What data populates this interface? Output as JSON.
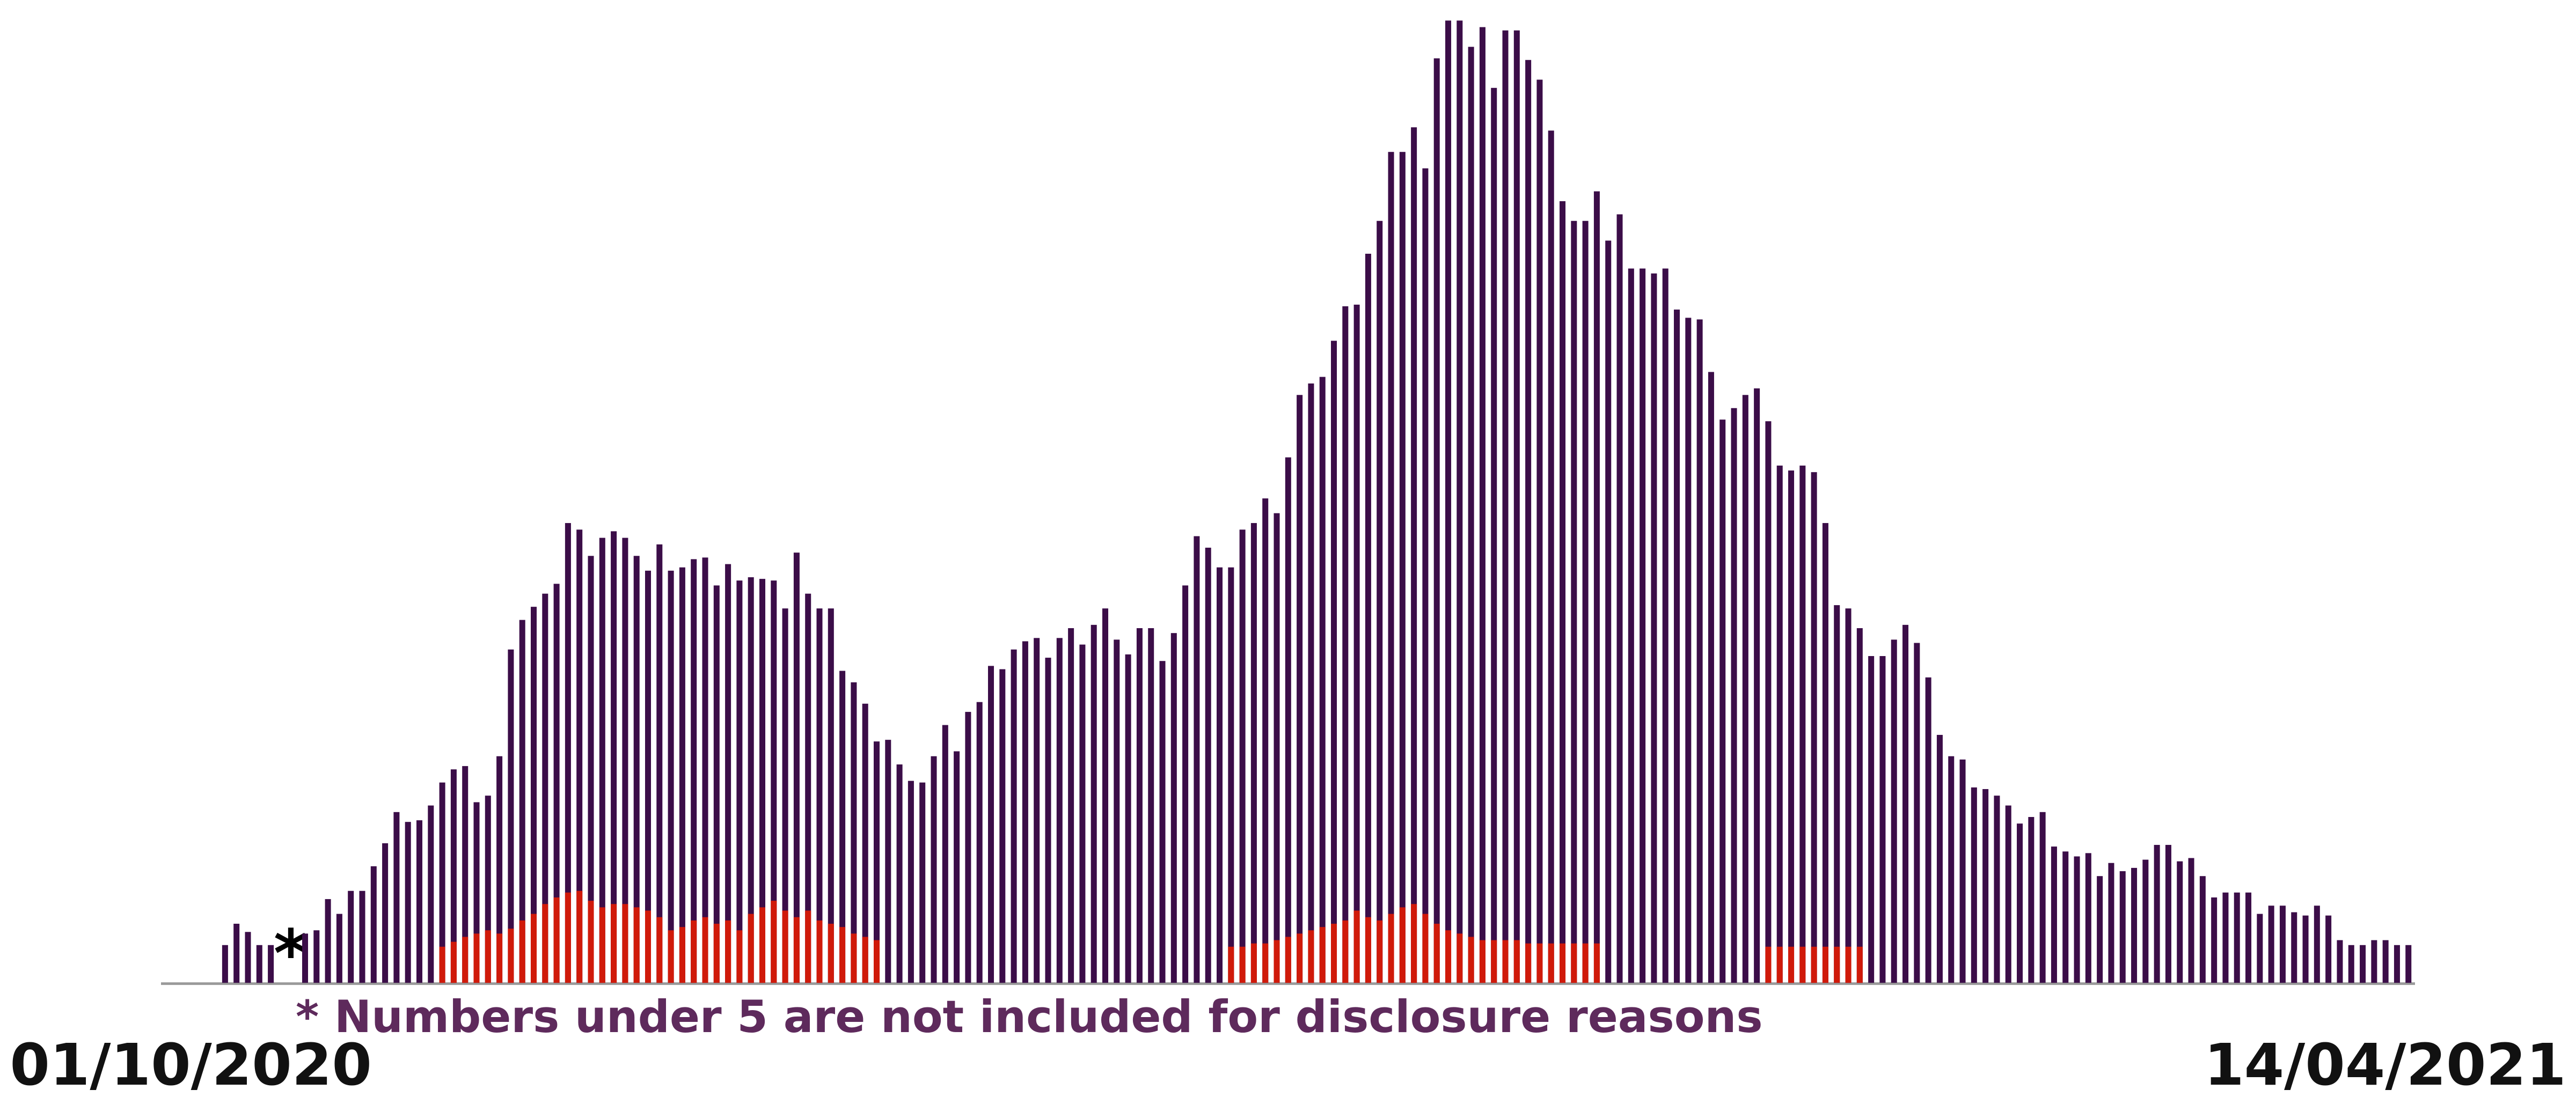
{
  "chart_data": {
    "type": "bar",
    "categories": [
      "01/10/2020",
      null,
      null,
      null,
      null,
      null,
      null,
      null,
      null,
      null,
      null,
      null,
      null,
      null,
      null,
      null,
      null,
      null,
      null,
      null,
      null,
      null,
      null,
      null,
      null,
      null,
      null,
      null,
      null,
      null,
      null,
      null,
      null,
      null,
      null,
      null,
      null,
      null,
      null,
      null,
      null,
      null,
      null,
      null,
      null,
      null,
      null,
      null,
      null,
      null,
      null,
      null,
      null,
      null,
      null,
      null,
      null,
      null,
      null,
      null,
      null,
      null,
      null,
      null,
      null,
      null,
      null,
      null,
      null,
      null,
      null,
      null,
      null,
      null,
      null,
      null,
      null,
      null,
      null,
      null,
      null,
      null,
      null,
      null,
      null,
      null,
      null,
      null,
      null,
      null,
      null,
      null,
      null,
      null,
      null,
      null,
      null,
      null,
      null,
      null,
      null,
      null,
      null,
      null,
      null,
      null,
      null,
      null,
      null,
      null,
      null,
      null,
      null,
      null,
      null,
      null,
      null,
      null,
      null,
      null,
      null,
      null,
      null,
      null,
      null,
      null,
      null,
      null,
      null,
      null,
      null,
      null,
      null,
      null,
      null,
      null,
      null,
      null,
      null,
      null,
      null,
      null,
      null,
      null,
      null,
      null,
      null,
      null,
      null,
      null,
      null,
      null,
      null,
      null,
      null,
      null,
      null,
      null,
      null,
      null,
      null,
      null,
      null,
      null,
      null,
      null,
      null,
      null,
      null,
      null,
      null,
      null,
      null,
      null,
      null,
      null,
      null,
      null,
      null,
      null,
      null,
      null,
      null,
      null,
      null,
      null,
      null,
      null,
      null,
      null,
      null,
      "14/04/2021"
    ],
    "series": [
      {
        "color": "#3b0d48",
        "values": [
          23,
          36,
          31,
          23,
          23,
          null,
          null,
          30,
          32,
          51,
          42,
          56,
          56,
          71,
          85,
          104,
          98,
          99,
          108,
          122,
          130,
          132,
          110,
          114,
          138,
          203,
          221,
          229,
          237,
          243,
          280,
          276,
          260,
          271,
          275,
          271,
          260,
          251,
          267,
          251,
          253,
          258,
          259,
          242,
          255,
          245,
          247,
          246,
          245,
          228,
          262,
          237,
          228,
          228,
          190,
          183,
          170,
          147,
          148,
          133,
          123,
          122,
          138,
          157,
          141,
          165,
          171,
          193,
          191,
          203,
          208,
          210,
          198,
          210,
          216,
          206,
          218,
          228,
          209,
          200,
          216,
          216,
          196,
          213,
          242,
          272,
          265,
          253,
          253,
          276,
          280,
          295,
          286,
          320,
          358,
          365,
          369,
          391,
          412,
          413,
          444,
          464,
          506,
          506,
          521,
          496,
          563,
          586,
          586,
          570,
          582,
          545,
          580,
          580,
          562,
          550,
          519,
          476,
          464,
          464,
          482,
          452,
          468,
          435,
          435,
          432,
          435,
          410,
          405,
          404,
          372,
          343,
          350,
          358,
          362,
          342,
          315,
          312,
          315,
          311,
          280,
          230,
          228,
          216,
          199,
          199,
          209,
          218,
          207,
          186,
          151,
          138,
          136,
          119,
          118,
          114,
          108,
          97,
          101,
          104,
          83,
          80,
          77,
          79,
          65,
          73,
          68,
          70,
          75,
          84,
          84,
          74,
          76,
          65,
          52,
          55,
          55,
          55,
          42,
          47,
          47,
          43,
          41,
          47,
          41,
          26,
          23,
          23,
          26,
          26,
          23,
          23
        ]
      },
      {
        "color": "#d01a0a",
        "values": [
          null,
          null,
          null,
          null,
          null,
          null,
          null,
          null,
          null,
          null,
          null,
          null,
          null,
          null,
          null,
          null,
          null,
          null,
          null,
          22,
          25,
          28,
          30,
          32,
          30,
          33,
          38,
          42,
          48,
          52,
          55,
          56,
          50,
          46,
          48,
          48,
          46,
          44,
          40,
          32,
          34,
          38,
          40,
          36,
          38,
          32,
          42,
          46,
          50,
          44,
          40,
          44,
          38,
          36,
          34,
          30,
          28,
          26,
          null,
          null,
          null,
          null,
          null,
          null,
          null,
          null,
          null,
          null,
          null,
          null,
          null,
          null,
          null,
          null,
          null,
          null,
          null,
          null,
          null,
          null,
          null,
          null,
          null,
          null,
          null,
          null,
          null,
          null,
          22,
          22,
          24,
          24,
          26,
          28,
          30,
          32,
          34,
          36,
          38,
          44,
          40,
          38,
          42,
          46,
          48,
          42,
          36,
          32,
          30,
          28,
          26,
          26,
          26,
          26,
          24,
          24,
          24,
          24,
          24,
          24,
          24,
          null,
          null,
          null,
          null,
          null,
          null,
          null,
          null,
          null,
          null,
          null,
          null,
          null,
          null,
          22,
          22,
          22,
          22,
          22,
          22,
          22,
          22,
          22,
          null,
          null,
          null,
          null,
          null,
          null,
          null,
          null,
          null,
          null,
          null,
          null,
          null,
          null,
          null,
          null,
          null,
          null,
          null,
          null,
          null,
          null,
          null,
          null,
          null,
          null,
          null,
          null,
          null,
          null,
          null,
          null,
          null,
          null,
          null,
          null,
          null,
          null,
          null,
          null,
          null,
          null,
          null,
          null,
          null,
          null,
          null,
          null
        ]
      }
    ],
    "ylim": [
      0,
      598
    ],
    "gap_marker": "*",
    "note": "* Numbers under 5 are not included for disclosure reasons"
  }
}
